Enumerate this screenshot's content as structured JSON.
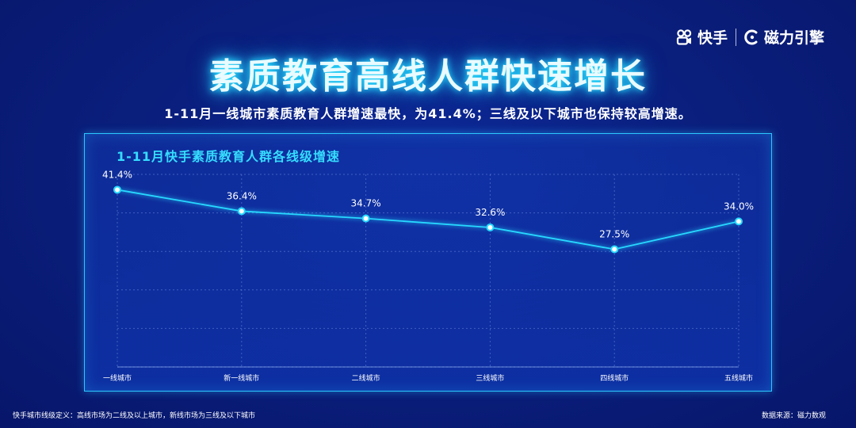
{
  "header": {
    "logo1": "快手",
    "logo2": "磁力引擎",
    "title": "素质教育高线人群快速增长",
    "subtitle": "1-11月一线城市素质教育人群增速最快，为41.4%；三线及以下城市也保持较高增速。"
  },
  "colors": {
    "line": "#27d8ff",
    "panel_border": "#2cc7ff",
    "title_glow": "#27e0ff"
  },
  "chart_data": {
    "type": "line",
    "title": "1-11月快手素质教育人群各线级增速",
    "categories": [
      "一线城市",
      "新一线城市",
      "二线城市",
      "三线城市",
      "四线城市",
      "五线城市"
    ],
    "values": [
      41.4,
      36.4,
      34.7,
      32.6,
      27.5,
      34.0
    ],
    "data_labels": [
      "41.4%",
      "36.4%",
      "34.7%",
      "32.6%",
      "27.5%",
      "34.0%"
    ],
    "ylim": [
      0,
      45
    ],
    "grid": true
  },
  "footer": {
    "note": "快手城市线级定义：高线市场为二线及以上城市，新线市场为三线及以下城市",
    "source": "数据来源：磁力数观"
  }
}
